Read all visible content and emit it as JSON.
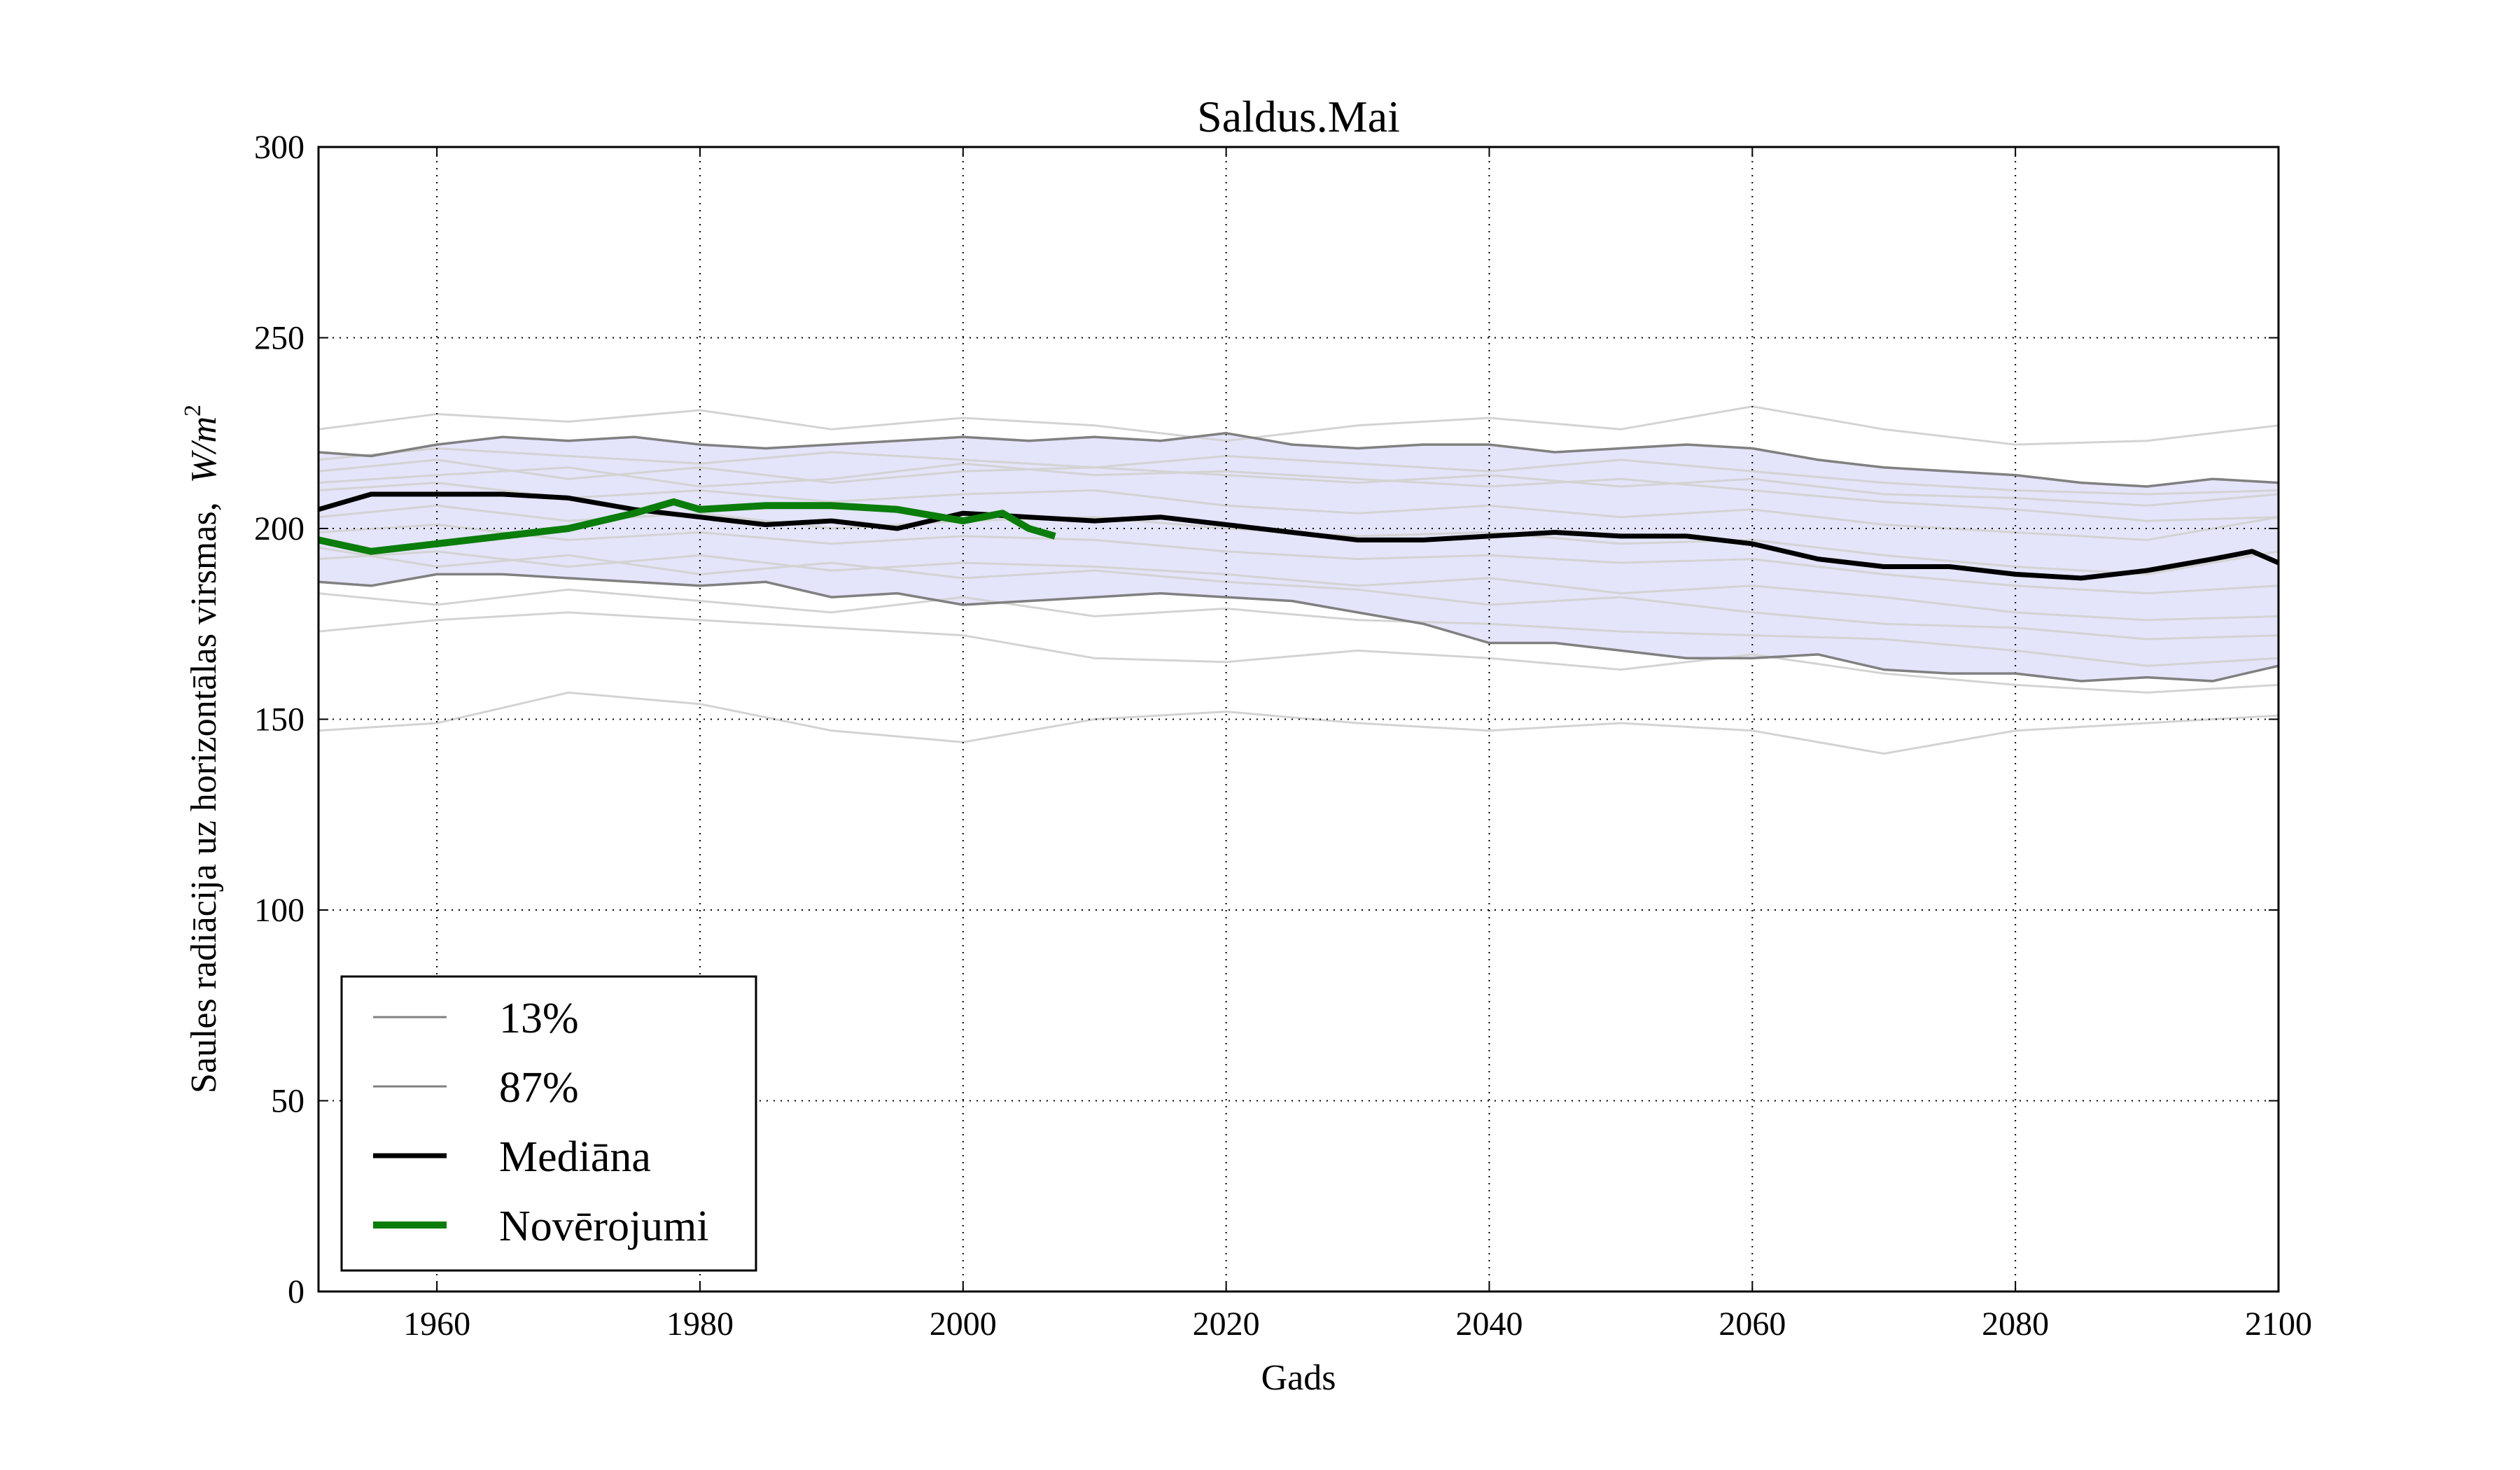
{
  "chart_data": {
    "type": "line",
    "title": "Saldus.Mai",
    "xlabel": "Gads",
    "ylabel": "Saules radiācija uz horizontālas virsmas,",
    "ylabel_unit": "W/m",
    "ylabel_unit_exp": "2",
    "xlim": [
      1951,
      2100
    ],
    "ylim": [
      0,
      300
    ],
    "xticks": [
      1960,
      1980,
      2000,
      2020,
      2040,
      2060,
      2080,
      2100
    ],
    "yticks": [
      0,
      50,
      100,
      150,
      200,
      250,
      300
    ],
    "grid": true,
    "legend_position": "lower-left",
    "band_color": "#e4e4fb",
    "colors": {
      "ensemble": "#d3d3d3",
      "percentile": "#808080",
      "median": "#000000",
      "observations": "#0a7d0a"
    },
    "legend": [
      {
        "label": "13%",
        "color": "#808080",
        "width": 3
      },
      {
        "label": "87%",
        "color": "#808080",
        "width": 3
      },
      {
        "label": "Mediāna",
        "color": "#000000",
        "width": 7
      },
      {
        "label": "Novērojumi",
        "color": "#0a7d0a",
        "width": 10
      }
    ],
    "series": [
      {
        "name": "13%",
        "x": [
          1951,
          1955,
          1960,
          1965,
          1970,
          1975,
          1980,
          1985,
          1990,
          1995,
          2000,
          2005,
          2010,
          2015,
          2020,
          2025,
          2030,
          2035,
          2040,
          2045,
          2050,
          2055,
          2060,
          2065,
          2070,
          2075,
          2080,
          2085,
          2090,
          2095,
          2100
        ],
        "values": [
          186,
          185,
          188,
          188,
          187,
          186,
          185,
          186,
          182,
          183,
          180,
          181,
          182,
          183,
          182,
          181,
          178,
          175,
          170,
          170,
          168,
          166,
          166,
          167,
          163,
          162,
          162,
          160,
          161,
          160,
          164
        ]
      },
      {
        "name": "87%",
        "x": [
          1951,
          1955,
          1960,
          1965,
          1970,
          1975,
          1980,
          1985,
          1990,
          1995,
          2000,
          2005,
          2010,
          2015,
          2020,
          2025,
          2030,
          2035,
          2040,
          2045,
          2050,
          2055,
          2060,
          2065,
          2070,
          2075,
          2080,
          2085,
          2090,
          2095,
          2100
        ],
        "values": [
          220,
          219,
          222,
          224,
          223,
          224,
          222,
          221,
          222,
          223,
          224,
          223,
          224,
          223,
          225,
          222,
          221,
          222,
          222,
          220,
          221,
          222,
          221,
          218,
          216,
          215,
          214,
          212,
          211,
          213,
          212
        ]
      },
      {
        "name": "Mediāna",
        "x": [
          1951,
          1955,
          1960,
          1965,
          1970,
          1975,
          1980,
          1985,
          1990,
          1995,
          2000,
          2005,
          2010,
          2015,
          2020,
          2025,
          2030,
          2035,
          2040,
          2045,
          2050,
          2055,
          2060,
          2065,
          2070,
          2075,
          2080,
          2085,
          2090,
          2095,
          2098,
          2100
        ],
        "values": [
          205,
          209,
          209,
          209,
          208,
          205,
          203,
          201,
          202,
          200,
          204,
          203,
          202,
          203,
          201,
          199,
          197,
          197,
          198,
          199,
          198,
          198,
          196,
          192,
          190,
          190,
          188,
          187,
          189,
          192,
          194,
          191
        ]
      },
      {
        "name": "Novērojumi",
        "x": [
          1951,
          1955,
          1960,
          1965,
          1970,
          1975,
          1978,
          1980,
          1985,
          1990,
          1995,
          2000,
          2003,
          2005,
          2007
        ],
        "values": [
          197,
          194,
          196,
          198,
          200,
          204,
          207,
          205,
          206,
          206,
          205,
          202,
          204,
          200,
          198
        ]
      }
    ],
    "ensemble_members": [
      {
        "x": [
          1951,
          1960,
          1970,
          1980,
          1990,
          2000,
          2010,
          2020,
          2030,
          2040,
          2050,
          2060,
          2070,
          2080,
          2090,
          2100
        ],
        "values": [
          147,
          149,
          157,
          154,
          147,
          144,
          150,
          152,
          149,
          147,
          149,
          147,
          141,
          147,
          149,
          151
        ]
      },
      {
        "x": [
          1951,
          1960,
          1970,
          1980,
          1990,
          2000,
          2010,
          2020,
          2030,
          2040,
          2050,
          2060,
          2070,
          2080,
          2090,
          2100
        ],
        "values": [
          173,
          176,
          178,
          176,
          174,
          172,
          166,
          165,
          168,
          166,
          163,
          167,
          162,
          159,
          157,
          159
        ]
      },
      {
        "x": [
          1951,
          1960,
          1970,
          1980,
          1990,
          2000,
          2010,
          2020,
          2030,
          2040,
          2050,
          2060,
          2070,
          2080,
          2090,
          2100
        ],
        "values": [
          226,
          230,
          228,
          231,
          226,
          229,
          227,
          223,
          227,
          229,
          226,
          232,
          226,
          222,
          223,
          227
        ]
      },
      {
        "x": [
          1951,
          1960,
          1970,
          1980,
          1990,
          2000,
          2010,
          2020,
          2030,
          2040,
          2050,
          2060,
          2070,
          2080,
          2090,
          2100
        ],
        "values": [
          215,
          218,
          213,
          216,
          212,
          215,
          216,
          214,
          212,
          214,
          211,
          213,
          209,
          208,
          206,
          209
        ]
      },
      {
        "x": [
          1951,
          1960,
          1970,
          1980,
          1990,
          2000,
          2010,
          2020,
          2030,
          2040,
          2050,
          2060,
          2070,
          2080,
          2090,
          2100
        ],
        "values": [
          210,
          212,
          208,
          210,
          207,
          209,
          210,
          206,
          204,
          206,
          203,
          205,
          201,
          199,
          197,
          203
        ]
      },
      {
        "x": [
          1951,
          1960,
          1970,
          1980,
          1990,
          2000,
          2010,
          2020,
          2030,
          2040,
          2050,
          2060,
          2070,
          2080,
          2090,
          2100
        ],
        "values": [
          199,
          201,
          197,
          199,
          196,
          198,
          197,
          194,
          192,
          193,
          191,
          192,
          188,
          185,
          183,
          185
        ]
      },
      {
        "x": [
          1951,
          1960,
          1970,
          1980,
          1990,
          2000,
          2010,
          2020,
          2030,
          2040,
          2050,
          2060,
          2070,
          2080,
          2090,
          2100
        ],
        "values": [
          192,
          194,
          190,
          193,
          189,
          191,
          190,
          188,
          185,
          187,
          183,
          185,
          182,
          178,
          176,
          177
        ]
      },
      {
        "x": [
          1951,
          1960,
          1970,
          1980,
          1990,
          2000,
          2010,
          2020,
          2030,
          2040,
          2050,
          2060,
          2070,
          2080,
          2090,
          2100
        ],
        "values": [
          195,
          190,
          193,
          188,
          191,
          187,
          189,
          186,
          184,
          180,
          182,
          178,
          175,
          174,
          171,
          172
        ]
      },
      {
        "x": [
          1951,
          1960,
          1970,
          1980,
          1990,
          2000,
          2010,
          2020,
          2030,
          2040,
          2050,
          2060,
          2070,
          2080,
          2090,
          2100
        ],
        "values": [
          203,
          206,
          202,
          204,
          200,
          202,
          203,
          200,
          198,
          199,
          196,
          197,
          193,
          190,
          188,
          194
        ]
      },
      {
        "x": [
          1951,
          1960,
          1970,
          1980,
          1990,
          2000,
          2010,
          2020,
          2030,
          2040,
          2050,
          2060,
          2070,
          2080,
          2090,
          2100
        ],
        "values": [
          212,
          214,
          216,
          211,
          213,
          217,
          214,
          215,
          213,
          211,
          213,
          210,
          207,
          205,
          202,
          203
        ]
      },
      {
        "x": [
          1951,
          1960,
          1970,
          1980,
          1990,
          2000,
          2010,
          2020,
          2030,
          2040,
          2050,
          2060,
          2070,
          2080,
          2090,
          2100
        ],
        "values": [
          183,
          180,
          184,
          181,
          178,
          182,
          177,
          179,
          176,
          175,
          173,
          172,
          171,
          168,
          164,
          166
        ]
      },
      {
        "x": [
          1951,
          1960,
          1970,
          1980,
          1990,
          2000,
          2010,
          2020,
          2030,
          2040,
          2050,
          2060,
          2070,
          2080,
          2090,
          2100
        ],
        "values": [
          218,
          221,
          219,
          217,
          220,
          218,
          216,
          219,
          217,
          215,
          218,
          215,
          212,
          210,
          209,
          210
        ]
      }
    ]
  }
}
